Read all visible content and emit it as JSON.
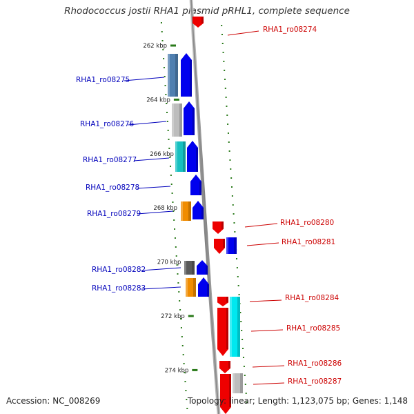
{
  "title": "Rhodococcus jostii RHA1 plasmid pRHL1, complete sequence",
  "footer": {
    "accession": "Accession: NC_008269",
    "topology": "Topology: linear; Length: 1,123,075 bp; Genes: 1,148"
  },
  "colors": {
    "backbone": "#8c8c8c",
    "tick_major": "#2a7a1a",
    "left_label": "#0000bb",
    "right_label": "#cc0000",
    "forward_strand": "#0000ee",
    "reverse_strand": "#ee0000"
  },
  "scale": {
    "unit": "kbp",
    "ticks": [
      {
        "kbp": 262,
        "label": "262 kbp"
      },
      {
        "kbp": 264,
        "label": "264 kbp"
      },
      {
        "kbp": 266,
        "label": "266 kbp"
      },
      {
        "kbp": 268,
        "label": "268 kbp"
      },
      {
        "kbp": 270,
        "label": "270 kbp"
      },
      {
        "kbp": 272,
        "label": "272 kbp"
      },
      {
        "kbp": 274,
        "label": "274 kbp"
      }
    ]
  },
  "genes": [
    {
      "name": "RHA1_ro08274",
      "strand": "reverse",
      "side": "right",
      "category_color": "#ee0000"
    },
    {
      "name": "RHA1_ro08275",
      "strand": "forward",
      "side": "left",
      "category_color": "#4f7fb0"
    },
    {
      "name": "RHA1_ro08276",
      "strand": "forward",
      "side": "left",
      "category_color": "#bdbdbd"
    },
    {
      "name": "RHA1_ro08277",
      "strand": "forward",
      "side": "left",
      "category_color": "#16c0c0"
    },
    {
      "name": "RHA1_ro08278",
      "strand": "forward",
      "side": "left",
      "category_color": ""
    },
    {
      "name": "RHA1_ro08279",
      "strand": "forward",
      "side": "left",
      "category_color": "#f08c00"
    },
    {
      "name": "RHA1_ro08280",
      "strand": "reverse",
      "side": "right",
      "category_color": ""
    },
    {
      "name": "RHA1_ro08281",
      "strand": "reverse",
      "side": "right",
      "category_color": "#0000ee"
    },
    {
      "name": "RHA1_ro08282",
      "strand": "forward",
      "side": "left",
      "category_color": "#5a5a5a"
    },
    {
      "name": "RHA1_ro08283",
      "strand": "forward",
      "side": "left",
      "category_color": "#f08c00"
    },
    {
      "name": "RHA1_ro08284",
      "strand": "reverse",
      "side": "right",
      "category_color": "#00e8f0"
    },
    {
      "name": "RHA1_ro08285",
      "strand": "reverse",
      "side": "right",
      "category_color": ""
    },
    {
      "name": "RHA1_ro08286",
      "strand": "reverse",
      "side": "right",
      "category_color": ""
    },
    {
      "name": "RHA1_ro08287",
      "strand": "reverse",
      "side": "right",
      "category_color": "#bdbdbd"
    }
  ]
}
